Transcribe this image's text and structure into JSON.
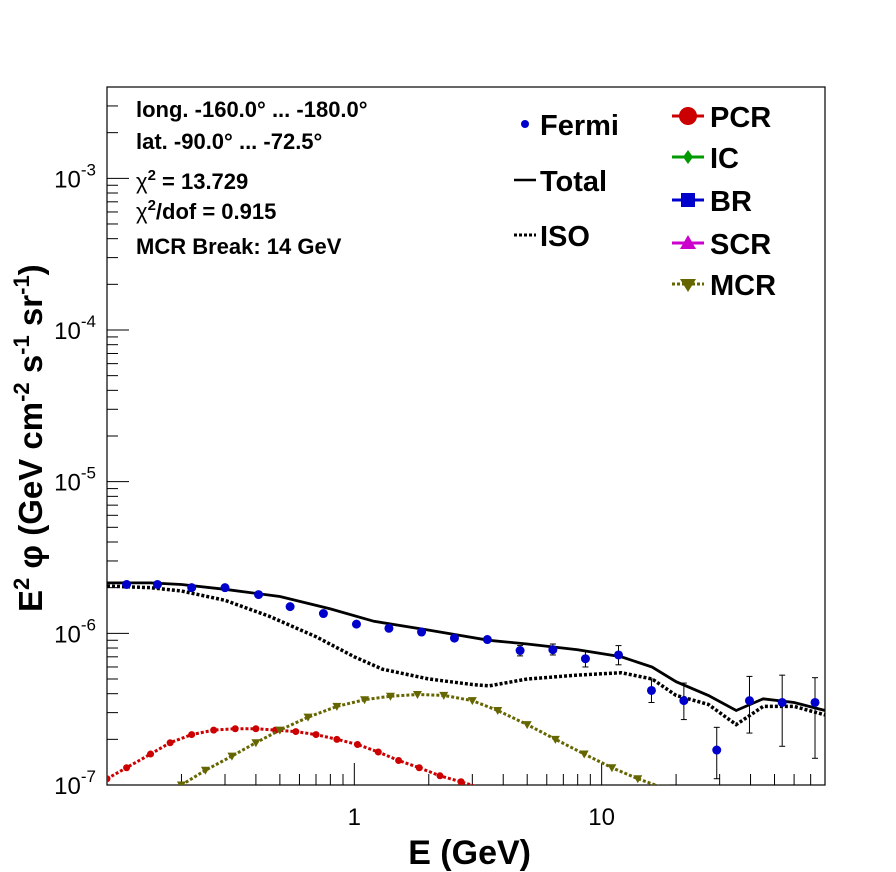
{
  "chart_data": {
    "type": "scatter",
    "xlabel": "E (GeV)",
    "ylabel_parts": [
      "E",
      "2",
      " φ (GeV cm",
      "-2",
      " s",
      "-1",
      " sr",
      "-1",
      ")"
    ],
    "x_scale": "log",
    "y_scale": "log",
    "xlim": [
      0.1,
      80
    ],
    "ylim": [
      1e-07,
      0.004
    ],
    "x_ticks": [
      {
        "v": 1,
        "label": "1"
      },
      {
        "v": 10,
        "label": "10"
      }
    ],
    "y_ticks": [
      {
        "v": 1e-07,
        "base": "10",
        "exp": "-7"
      },
      {
        "v": 1e-06,
        "base": "10",
        "exp": "-6"
      },
      {
        "v": 1e-05,
        "base": "10",
        "exp": "-5"
      },
      {
        "v": 0.0001,
        "base": "10",
        "exp": "-4"
      },
      {
        "v": 0.001,
        "base": "10",
        "exp": "-3"
      }
    ],
    "info": {
      "longitude": "long. -160.0° ... -180.0°",
      "latitude": "lat. -90.0° ... -72.5°",
      "chi2_prefix": "χ",
      "chi2_sup": "2",
      "chi2_value": " = 13.729",
      "chi2dof_prefix": "χ",
      "chi2dof_sup": "2",
      "chi2dof_value": "/dof = 0.915",
      "mcr_break": "MCR Break: 14 GeV"
    },
    "legend_left": [
      {
        "name": "Fermi",
        "style": "marker"
      },
      {
        "name": "Total",
        "style": "solid"
      },
      {
        "name": "ISO",
        "style": "dotted"
      }
    ],
    "legend_right": [
      {
        "name": "PCR",
        "color": "#cc0000",
        "marker": "circle"
      },
      {
        "name": "IC",
        "color": "#009900",
        "marker": "diamond"
      },
      {
        "name": "BR",
        "color": "#0000cc",
        "marker": "square"
      },
      {
        "name": "SCR",
        "color": "#cc00cc",
        "marker": "triangle-up"
      },
      {
        "name": "MCR",
        "color": "#666600",
        "marker": "triangle-down"
      }
    ],
    "series": [
      {
        "name": "Fermi",
        "color": "#0000cc",
        "x": [
          0.12,
          0.16,
          0.22,
          0.3,
          0.41,
          0.55,
          0.75,
          1.02,
          1.38,
          1.87,
          2.54,
          3.45,
          4.68,
          6.35,
          8.6,
          11.7,
          15.9,
          21.5,
          29.2,
          39.6,
          53.7,
          72.9
        ],
        "y": [
          2.1e-06,
          2.1e-06,
          2e-06,
          2e-06,
          1.8e-06,
          1.5e-06,
          1.35e-06,
          1.15e-06,
          1.08e-06,
          1.02e-06,
          9.3e-07,
          9.1e-07,
          7.7e-07,
          7.8e-07,
          6.8e-07,
          7.2e-07,
          4.2e-07,
          3.6e-07,
          1.7e-07,
          3.6e-07,
          3.5e-07,
          3.5e-07
        ],
        "err_lo": [
          0,
          0,
          0,
          0,
          0,
          0,
          0,
          0,
          0,
          0,
          0,
          0,
          6e-08,
          6e-08,
          8e-08,
          1e-07,
          7e-08,
          9e-08,
          6e-08,
          1.4e-07,
          1.7e-07,
          2e-07
        ],
        "err_hi": [
          0,
          0,
          0,
          0,
          0,
          0,
          0,
          0,
          0,
          0,
          0,
          0,
          6e-08,
          7e-08,
          8e-08,
          1.1e-07,
          8e-08,
          1.1e-07,
          7e-08,
          1.6e-07,
          1.8e-07,
          1.6e-07
        ]
      },
      {
        "name": "Total",
        "color": "#000000",
        "x": [
          0.1,
          0.15,
          0.2,
          0.3,
          0.5,
          0.8,
          1.2,
          2.0,
          3.5,
          5,
          8,
          12,
          16,
          20,
          27,
          35,
          45,
          60,
          80
        ],
        "y": [
          2.15e-06,
          2.15e-06,
          2.1e-06,
          1.95e-06,
          1.75e-06,
          1.45e-06,
          1.2e-06,
          1.05e-06,
          9e-07,
          8.5e-07,
          7.8e-07,
          7e-07,
          6e-07,
          4.8e-07,
          3.9e-07,
          3.1e-07,
          3.7e-07,
          3.5e-07,
          3.1e-07
        ]
      },
      {
        "name": "ISO",
        "color": "#000000",
        "x": [
          0.1,
          0.15,
          0.2,
          0.3,
          0.45,
          0.7,
          1.0,
          1.3,
          2.0,
          3.0,
          3.5,
          5,
          8,
          12,
          16,
          20,
          27,
          35,
          45,
          60,
          80
        ],
        "y": [
          2.05e-06,
          2e-06,
          1.9e-06,
          1.65e-06,
          1.3e-06,
          9.5e-07,
          7e-07,
          5.8e-07,
          5e-07,
          4.6e-07,
          4.5e-07,
          5e-07,
          5.3e-07,
          5.5e-07,
          5e-07,
          3.9e-07,
          3.4e-07,
          2.5e-07,
          3.3e-07,
          3.3e-07,
          2.9e-07
        ]
      },
      {
        "name": "PCR",
        "color": "#cc0000",
        "x": [
          0.1,
          0.12,
          0.15,
          0.18,
          0.22,
          0.27,
          0.33,
          0.4,
          0.48,
          0.58,
          0.7,
          0.85,
          1.03,
          1.25,
          1.51,
          1.83,
          2.22,
          2.7,
          3.3
        ],
        "y": [
          1.1e-07,
          1.3e-07,
          1.6e-07,
          1.9e-07,
          2.15e-07,
          2.3e-07,
          2.35e-07,
          2.35e-07,
          2.3e-07,
          2.25e-07,
          2.15e-07,
          2e-07,
          1.85e-07,
          1.65e-07,
          1.45e-07,
          1.3e-07,
          1.15e-07,
          1.05e-07,
          9.5e-08
        ]
      },
      {
        "name": "MCR",
        "color": "#666600",
        "x": [
          0.2,
          0.25,
          0.32,
          0.4,
          0.5,
          0.65,
          0.85,
          1.1,
          1.4,
          1.8,
          2.3,
          3.0,
          3.8,
          5.0,
          6.5,
          8.5,
          11,
          14,
          18
        ],
        "y": [
          1e-07,
          1.25e-07,
          1.55e-07,
          1.9e-07,
          2.3e-07,
          2.8e-07,
          3.3e-07,
          3.65e-07,
          3.85e-07,
          3.95e-07,
          3.9e-07,
          3.6e-07,
          3.1e-07,
          2.5e-07,
          2e-07,
          1.6e-07,
          1.3e-07,
          1.1e-07,
          9.5e-08
        ]
      }
    ]
  }
}
